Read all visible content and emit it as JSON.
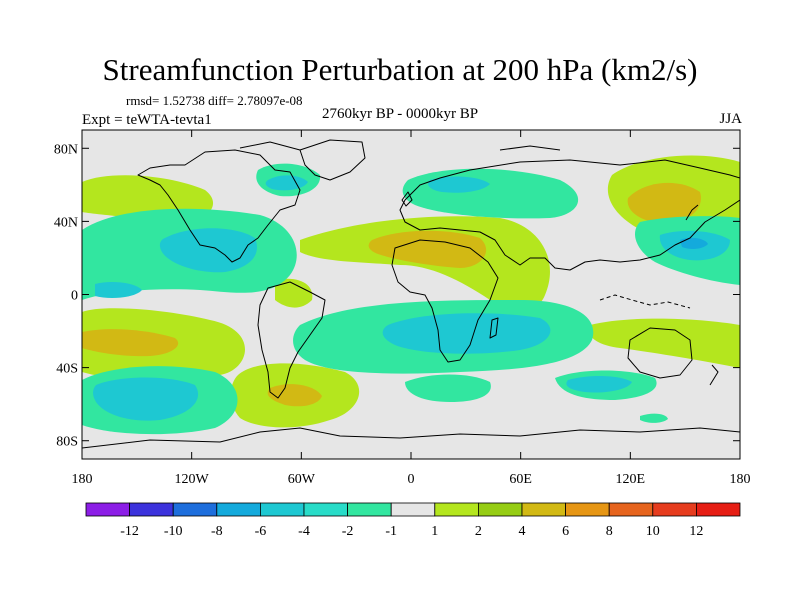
{
  "title": "Streamfunction Perturbation at 200 hPa (km2/s)",
  "stats": "rmsd= 1.52738 diff= 2.78097e-08",
  "period": "2760kyr BP - 0000kyr BP",
  "experiment": "Expt = teWTA-tevta1",
  "season": "JJA",
  "map": {
    "lat_ticks": [
      {
        "label": "80N",
        "lat": 80
      },
      {
        "label": "40N",
        "lat": 40
      },
      {
        "label": "0",
        "lat": 0
      },
      {
        "label": "40S",
        "lat": -40
      },
      {
        "label": "80S",
        "lat": -80
      }
    ],
    "lon_ticks": [
      {
        "label": "180",
        "lon": -180
      },
      {
        "label": "120W",
        "lon": -120
      },
      {
        "label": "60W",
        "lon": -60
      },
      {
        "label": "0",
        "lon": 0
      },
      {
        "label": "60E",
        "lon": 60
      },
      {
        "label": "120E",
        "lon": 120
      },
      {
        "label": "180",
        "lon": 180
      }
    ]
  },
  "colorbar": {
    "labels": [
      "-12",
      "-10",
      "-8",
      "-6",
      "-4",
      "-2",
      "-1",
      "1",
      "2",
      "4",
      "6",
      "8",
      "10",
      "12"
    ],
    "colors": [
      "#8c1ee6",
      "#3c32dc",
      "#1e6edc",
      "#14aadc",
      "#1ec8d2",
      "#28dcc8",
      "#32e6a0",
      "#e6e6e6",
      "#b4e61e",
      "#96cd14",
      "#d2b914",
      "#e69614",
      "#e6641e",
      "#e63c1e",
      "#e61e14"
    ]
  },
  "colors": {
    "background_field": "#e6e6e6",
    "neg1": "#32e6a0",
    "neg2": "#1ec8d2",
    "neg3": "#14aadc",
    "pos1": "#b4e61e",
    "pos2": "#d2b914"
  }
}
